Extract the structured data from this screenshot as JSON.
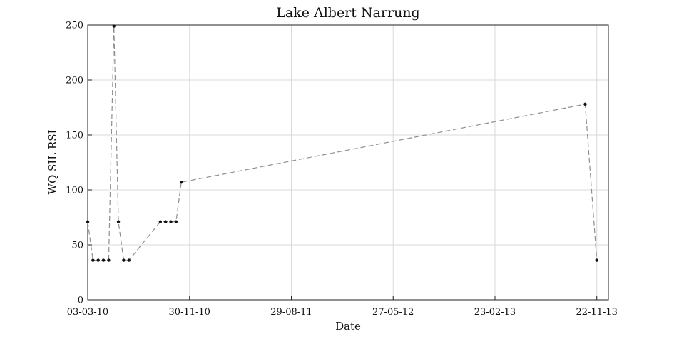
{
  "chart_data": {
    "type": "line",
    "title": "Lake Albert Narrung",
    "xlabel": "Date",
    "ylabel": "WQ SIL RSI",
    "x_tick_labels": [
      "03-03-10",
      "30-11-10",
      "29-08-11",
      "27-05-12",
      "23-02-13",
      "22-11-13"
    ],
    "y_tick_labels": [
      "0",
      "50",
      "100",
      "150",
      "200",
      "250"
    ],
    "y_ticks": [
      0,
      50,
      100,
      150,
      200,
      250
    ],
    "ylim": [
      0,
      250
    ],
    "xlim": [
      "2010-03-03",
      "2013-12-23"
    ],
    "grid": true,
    "series": [
      {
        "x": [
          "2010-03-03",
          "2010-03-17",
          "2010-03-31",
          "2010-04-14",
          "2010-04-28",
          "2010-05-12",
          "2010-05-24",
          "2010-06-07",
          "2010-06-21",
          "2010-09-13",
          "2010-09-27",
          "2010-10-11",
          "2010-10-25",
          "2010-11-08",
          "2013-10-22",
          "2013-11-22"
        ],
        "y": [
          71,
          36,
          36,
          36,
          36,
          249,
          71,
          36,
          36,
          71,
          71,
          71,
          71,
          107,
          178,
          36
        ]
      }
    ]
  }
}
